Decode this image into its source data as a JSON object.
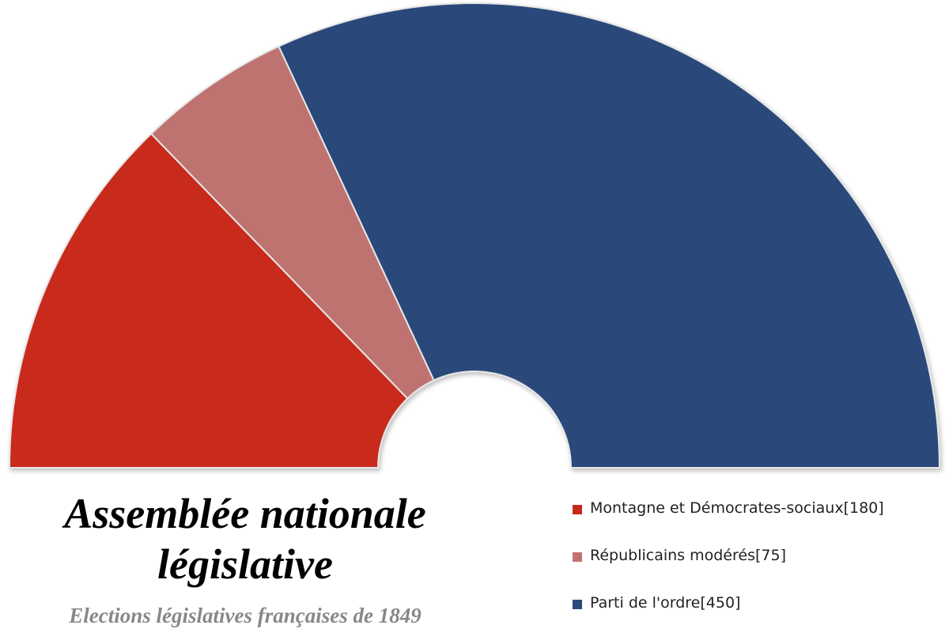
{
  "chart_data": {
    "type": "parliament",
    "title": "Assemblée nationale législative",
    "subtitle": "Elections législatives françaises de 1849",
    "series": [
      {
        "name": "Montagne et Démocrates-sociaux",
        "color": "#c8291d"
      },
      {
        "name": "Républicains modérés",
        "color": "#bf7370"
      },
      {
        "name": "Parti de l'ordre",
        "color": "#2b4a7a"
      }
    ],
    "values": [
      180,
      75,
      450
    ],
    "value_labels": [
      "[180]",
      "[75]",
      "[450]"
    ]
  }
}
